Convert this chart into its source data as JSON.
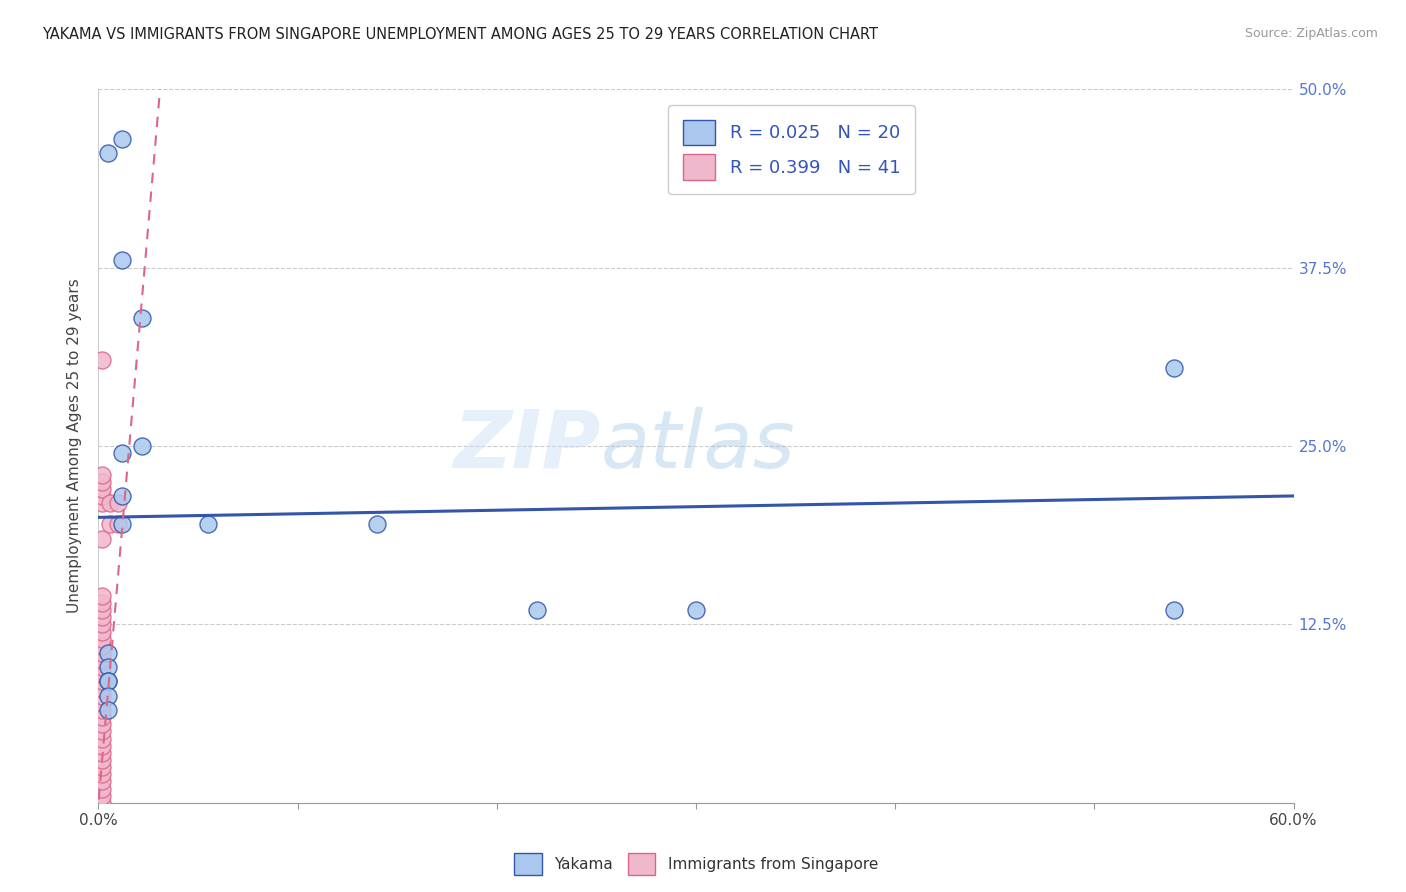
{
  "title": "YAKAMA VS IMMIGRANTS FROM SINGAPORE UNEMPLOYMENT AMONG AGES 25 TO 29 YEARS CORRELATION CHART",
  "source": "Source: ZipAtlas.com",
  "ylabel": "Unemployment Among Ages 25 to 29 years",
  "xlim": [
    0.0,
    0.6
  ],
  "ylim": [
    0.0,
    0.5
  ],
  "xticks": [
    0.0,
    0.1,
    0.2,
    0.3,
    0.4,
    0.5,
    0.6
  ],
  "xticklabels": [
    "0.0%",
    "",
    "",
    "",
    "",
    "",
    "60.0%"
  ],
  "yticks": [
    0.0,
    0.125,
    0.25,
    0.375,
    0.5
  ],
  "yticklabels_right": [
    "",
    "12.5%",
    "25.0%",
    "37.5%",
    "50.0%"
  ],
  "blue_points_x": [
    0.005,
    0.012,
    0.012,
    0.022,
    0.022,
    0.012,
    0.012,
    0.012,
    0.055,
    0.14,
    0.22,
    0.3,
    0.54,
    0.54,
    0.005,
    0.005,
    0.005,
    0.005,
    0.005,
    0.005
  ],
  "blue_points_y": [
    0.455,
    0.465,
    0.38,
    0.34,
    0.25,
    0.245,
    0.215,
    0.195,
    0.195,
    0.195,
    0.135,
    0.135,
    0.305,
    0.135,
    0.105,
    0.095,
    0.085,
    0.085,
    0.075,
    0.065
  ],
  "pink_points_x": [
    0.002,
    0.002,
    0.002,
    0.002,
    0.002,
    0.002,
    0.002,
    0.002,
    0.002,
    0.002,
    0.002,
    0.002,
    0.002,
    0.002,
    0.002,
    0.002,
    0.002,
    0.002,
    0.002,
    0.002,
    0.002,
    0.002,
    0.002,
    0.002,
    0.002,
    0.002,
    0.002,
    0.002,
    0.002,
    0.002,
    0.002,
    0.002,
    0.002,
    0.002,
    0.002,
    0.002,
    0.002,
    0.006,
    0.006,
    0.01,
    0.01
  ],
  "pink_points_y": [
    0.0,
    0.005,
    0.01,
    0.015,
    0.02,
    0.025,
    0.03,
    0.035,
    0.04,
    0.045,
    0.05,
    0.055,
    0.06,
    0.065,
    0.07,
    0.075,
    0.08,
    0.085,
    0.09,
    0.095,
    0.1,
    0.105,
    0.11,
    0.115,
    0.12,
    0.125,
    0.13,
    0.135,
    0.14,
    0.145,
    0.185,
    0.21,
    0.215,
    0.22,
    0.225,
    0.23,
    0.31,
    0.195,
    0.21,
    0.195,
    0.21
  ],
  "blue_R": 0.025,
  "blue_N": 20,
  "pink_R": 0.399,
  "pink_N": 41,
  "blue_line_color": "#3355aa",
  "pink_line_color": "#dd6688",
  "blue_scatter_color": "#aac8ee",
  "pink_scatter_color": "#f0b8cc",
  "blue_line_y_start": 0.2,
  "blue_line_y_end": 0.215,
  "pink_line_x_start": 0.0,
  "pink_line_y_start": 0.0,
  "pink_line_x_end": 0.025,
  "pink_line_y_end": 0.22,
  "watermark_zip": "ZIP",
  "watermark_atlas": "atlas",
  "background_color": "#ffffff",
  "grid_color": "#cccccc"
}
